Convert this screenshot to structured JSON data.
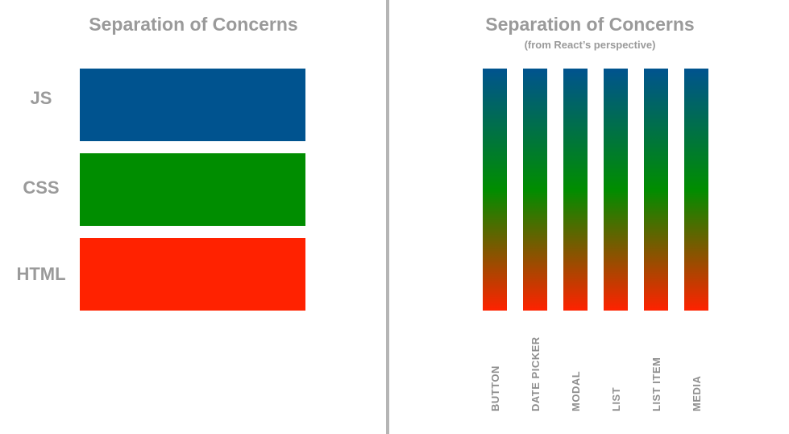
{
  "left_panel": {
    "title": "Separation of Concerns",
    "layers": [
      {
        "label": "JS",
        "color": "#00538f"
      },
      {
        "label": "CSS",
        "color": "#008d00"
      },
      {
        "label": "HTML",
        "color": "#ff2200"
      }
    ]
  },
  "right_panel": {
    "title": "Separation of Concerns",
    "subtitle": "(from React’s perspective)",
    "gradient_colors": [
      "#00538f",
      "#008d00",
      "#ff2200"
    ],
    "components": [
      {
        "label": "BUTTON"
      },
      {
        "label": "DATE PICKER"
      },
      {
        "label": "MODAL"
      },
      {
        "label": "LIST"
      },
      {
        "label": "LIST ITEM"
      },
      {
        "label": "MEDIA"
      }
    ]
  }
}
